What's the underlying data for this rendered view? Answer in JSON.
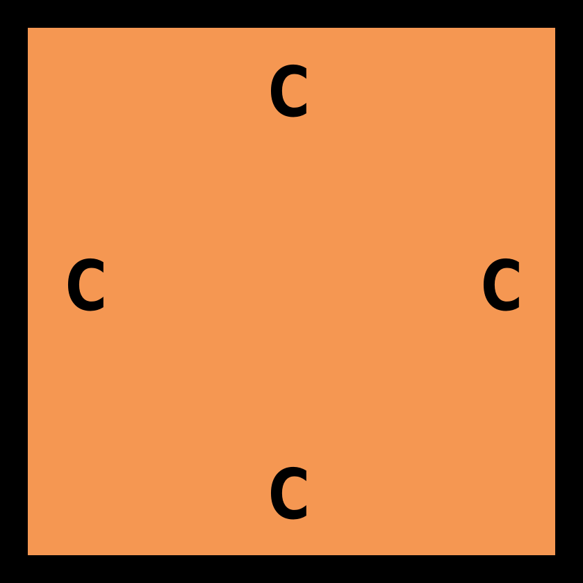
{
  "tile": {
    "fill_color": "#F59752",
    "border_color": "#000000",
    "edges": {
      "top": "C",
      "left": "C",
      "right": "C",
      "bottom": "C"
    }
  }
}
